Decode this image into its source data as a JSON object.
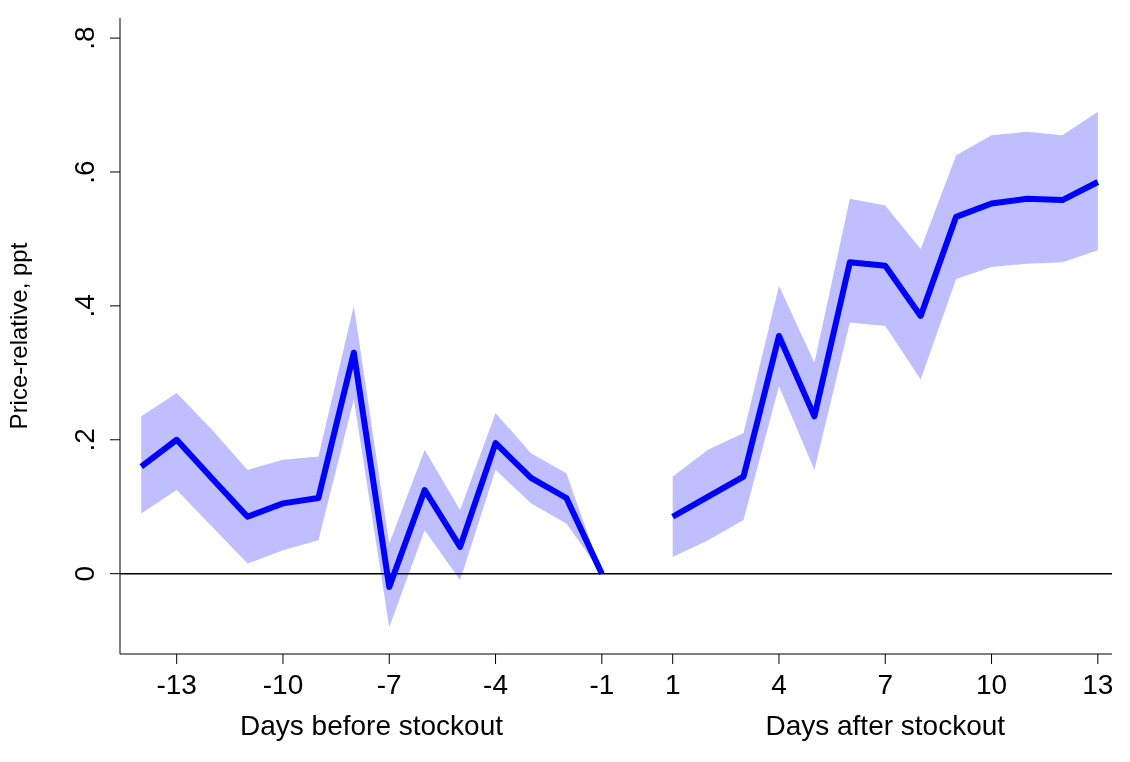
{
  "chart_data": {
    "type": "line",
    "ylabel": "Price-relative, ppt",
    "xlabel": "Days before stockout",
    "annotations": [
      "Days after stockout"
    ],
    "x": [
      -14,
      -13,
      -12,
      -11,
      -10,
      -9,
      -8,
      -7,
      -6,
      -5,
      -4,
      -3,
      -2,
      -1,
      0,
      1,
      2,
      3,
      4,
      5,
      6,
      7,
      8,
      9,
      10,
      11,
      12,
      13
    ],
    "series": [
      {
        "color": "#0000ff",
        "values": [
          0.16,
          0.2,
          0.142,
          0.085,
          0.105,
          0.113,
          0.33,
          -0.02,
          0.125,
          0.04,
          0.195,
          0.143,
          0.113,
          0,
          null,
          0.085,
          0.115,
          0.145,
          0.355,
          0.235,
          0.465,
          0.46,
          0.385,
          0.533,
          0.553,
          0.56,
          0.558,
          0.585
        ],
        "lower": [
          0.09,
          0.125,
          0.07,
          0.015,
          0.035,
          0.05,
          0.26,
          -0.08,
          0.065,
          -0.01,
          0.155,
          0.105,
          0.075,
          0,
          null,
          0.025,
          0.05,
          0.08,
          0.28,
          0.155,
          0.375,
          0.37,
          0.29,
          0.44,
          0.458,
          0.463,
          0.465,
          0.483
        ],
        "upper": [
          0.235,
          0.27,
          0.215,
          0.155,
          0.17,
          0.175,
          0.4,
          0.045,
          0.185,
          0.095,
          0.24,
          0.18,
          0.15,
          0,
          null,
          0.145,
          0.185,
          0.21,
          0.43,
          0.315,
          0.56,
          0.55,
          0.485,
          0.625,
          0.655,
          0.66,
          0.655,
          0.69
        ]
      }
    ],
    "xlim": [
      -14.6,
      13.4
    ],
    "xticks": [
      -13,
      -10,
      -7,
      -4,
      -1,
      1,
      4,
      7,
      10,
      13
    ],
    "ylim": [
      -0.12,
      0.83
    ],
    "yticks": [
      {
        "value": 0,
        "label": "0"
      },
      {
        "value": 0.2,
        "label": ".2"
      },
      {
        "value": 0.4,
        "label": ".4"
      },
      {
        "value": 0.6,
        "label": ".6"
      },
      {
        "value": 0.8,
        "label": ".8"
      }
    ],
    "ref_lines": [
      {
        "axis": "y",
        "value": 0,
        "color": "#000000"
      }
    ],
    "grid": false,
    "legend": false,
    "marker": "none",
    "line_style": "solid"
  }
}
